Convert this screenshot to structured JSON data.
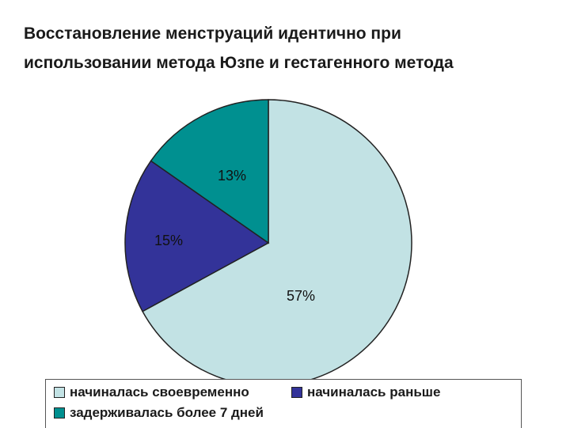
{
  "title": {
    "line1": "Восстановление менструаций идентично при",
    "line2": "использовании метода Юзпе и гестагенного метода"
  },
  "colors": {
    "slice_on_time": "#c2e2e4",
    "slice_earlier": "#333399",
    "slice_delayed": "#009090",
    "outline": "#222222"
  },
  "chart_data": {
    "type": "pie",
    "slices": [
      {
        "label": "начиналась своевременно",
        "value": 57,
        "data_label": "57%"
      },
      {
        "label": "начиналась раньше",
        "value": 15,
        "data_label": "15%"
      },
      {
        "label": "задерживалась более 7 дней",
        "value": 13,
        "data_label": "13%"
      }
    ],
    "legend": {
      "placement": "bottom",
      "items": [
        "начиналась своевременно",
        "начиналась раньше",
        "задерживалась более 7 дней"
      ]
    }
  }
}
